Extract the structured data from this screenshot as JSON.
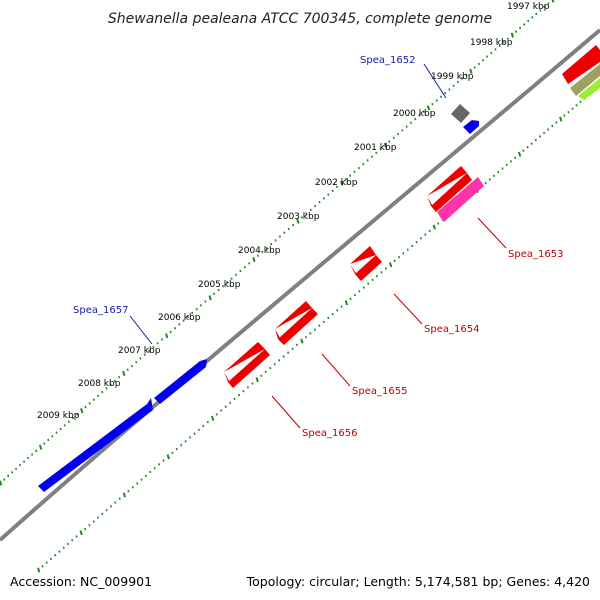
{
  "title": "Shewanella pealeana ATCC 700345, complete genome",
  "footer": {
    "accession": "Accession: NC_009901",
    "summary": "Topology: circular; Length: 5,174,581 bp; Genes: 4,420"
  },
  "colors": {
    "backbone": "#808080",
    "tick": "#1f8a1f",
    "forward_gene": "#0000ee",
    "reverse_gene": "#ee0000",
    "pseudogene": "#ff33aa",
    "other_gene": "#666666",
    "label_forward": "#1a1aa6",
    "label_reverse": "#c00000"
  },
  "scale": {
    "unit": "kbp",
    "labels": [
      "1997 kbp",
      "1998 kbp",
      "1999 kbp",
      "2000 kbp",
      "2001 kbp",
      "2002 kbp",
      "2003 kbp",
      "2004 kbp",
      "2005 kbp",
      "2006 kbp",
      "2007 kbp",
      "2008 kbp",
      "2009 kbp"
    ]
  },
  "gene_labels": {
    "forward": [
      {
        "name": "Spea_1652"
      },
      {
        "name": "Spea_1657"
      }
    ],
    "reverse": [
      {
        "name": "Spea_1653"
      },
      {
        "name": "Spea_1654"
      },
      {
        "name": "Spea_1655"
      },
      {
        "name": "Spea_1656"
      }
    ]
  }
}
